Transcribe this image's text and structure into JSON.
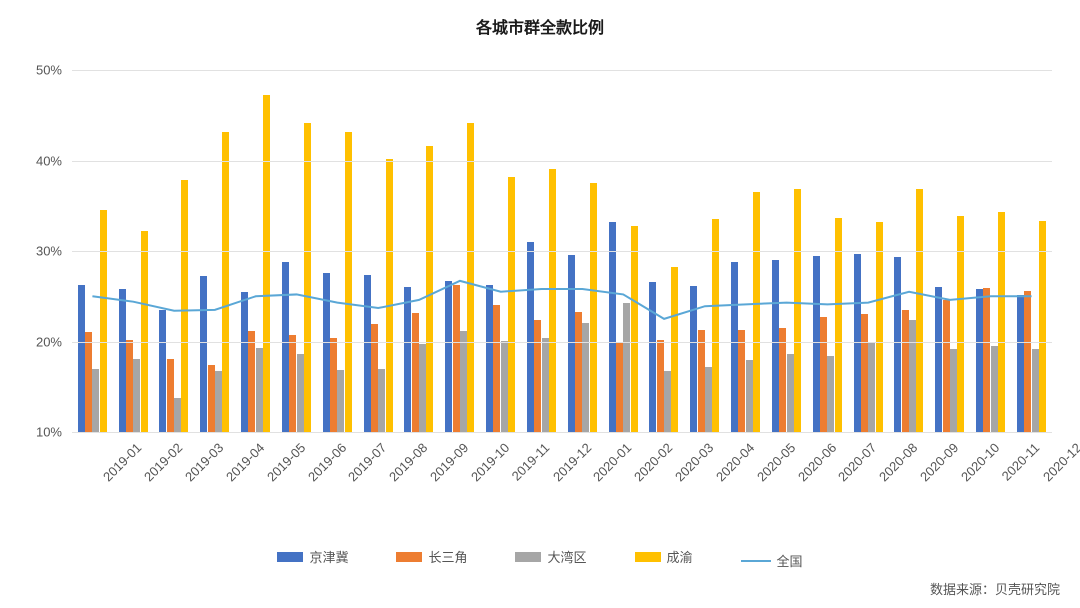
{
  "chart": {
    "type": "bar+line",
    "title": "各城市群全款比例",
    "title_fontsize": 16,
    "title_fontweight": 700,
    "background_color": "#ffffff",
    "grid_color": "#e1e1e1",
    "text_color": "#555555",
    "tick_fontsize": 13,
    "title_color": "#1a1a1a",
    "y_axis": {
      "min": 10,
      "max": 50,
      "tick_step": 10,
      "format": "percent",
      "ticks": [
        "10%",
        "20%",
        "30%",
        "40%",
        "50%"
      ]
    },
    "categories": [
      "2019-01",
      "2019-02",
      "2019-03",
      "2019-04",
      "2019-05",
      "2019-06",
      "2019-07",
      "2019-08",
      "2019-09",
      "2019-10",
      "2019-11",
      "2019-12",
      "2020-01",
      "2020-02",
      "2020-03",
      "2020-04",
      "2020-05",
      "2020-06",
      "2020-07",
      "2020-08",
      "2020-09",
      "2020-10",
      "2020-11",
      "2020-12"
    ],
    "bar_series": [
      {
        "name": "京津冀",
        "color": "#4472c4",
        "values": [
          26.3,
          25.8,
          23.5,
          27.2,
          25.5,
          28.8,
          27.6,
          27.3,
          26.0,
          26.7,
          26.3,
          31.0,
          29.6,
          33.2,
          26.6,
          26.1,
          28.8,
          29.0,
          29.5,
          29.7,
          29.3,
          26.0,
          25.8,
          25.1
        ]
      },
      {
        "name": "长三角",
        "color": "#ed7d31",
        "values": [
          21.0,
          20.2,
          18.1,
          17.4,
          21.2,
          20.7,
          20.4,
          21.9,
          23.2,
          26.3,
          24.0,
          22.4,
          23.3,
          19.8,
          20.2,
          21.3,
          21.3,
          21.5,
          22.7,
          23.0,
          23.5,
          24.6,
          25.9,
          25.6
        ]
      },
      {
        "name": "大湾区",
        "color": "#a6a6a6",
        "values": [
          17.0,
          18.1,
          13.8,
          16.7,
          19.3,
          18.6,
          16.8,
          17.0,
          19.7,
          21.2,
          20.1,
          20.4,
          22.0,
          24.3,
          16.7,
          17.2,
          18.0,
          18.6,
          18.4,
          19.9,
          22.4,
          19.2,
          19.5,
          19.2
        ]
      },
      {
        "name": "成渝",
        "color": "#ffc000",
        "values": [
          34.5,
          32.2,
          37.8,
          43.1,
          47.2,
          44.2,
          43.2,
          40.2,
          41.6,
          44.2,
          38.2,
          39.1,
          37.5,
          32.8,
          28.2,
          33.5,
          36.5,
          36.8,
          33.6,
          33.2,
          36.8,
          33.9,
          34.3,
          33.3
        ]
      }
    ],
    "line_series": {
      "name": "全国",
      "color": "#5aa7d6",
      "line_width": 2,
      "values": [
        25.0,
        24.4,
        23.4,
        23.5,
        25.0,
        25.2,
        24.3,
        23.7,
        24.6,
        26.7,
        25.5,
        25.8,
        25.8,
        25.2,
        22.5,
        23.9,
        24.1,
        24.3,
        24.1,
        24.3,
        25.5,
        24.6,
        25.0,
        25.0
      ]
    },
    "bar_group_width_ratio": 0.72,
    "xtick_rotation_deg": -45,
    "legend_position": "bottom",
    "legend_fontsize": 13,
    "source_label": "数据来源：贝壳研究院",
    "source_fontsize": 13
  }
}
